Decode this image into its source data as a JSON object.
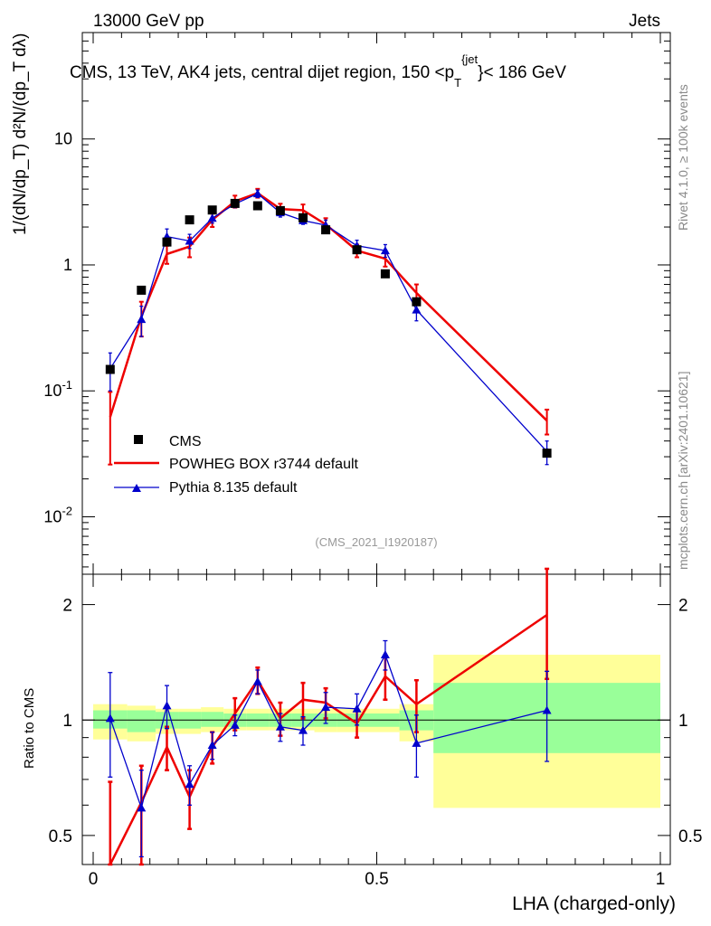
{
  "header": {
    "left": "13000 GeV pp",
    "right": "Jets",
    "plot_title": "CMS, 13 TeV, AK4 jets, central dijet region, 150 <p_T^{jet}< 186 GeV",
    "title_main": "CMS, 13 TeV, AK4 jets, central dijet region, 150 <p",
    "title_sub": "T",
    "title_sup": "{jet",
    "title_tail": "}< 186 GeV"
  },
  "side": {
    "rivet": "Rivet 4.1.0, ≥ 100k events",
    "mcplots": "mcplots.cern.ch [arXiv:2401.10621]"
  },
  "watermark": "(CMS_2021_I1920187)",
  "colors": {
    "data": "#000000",
    "powheg": "#ee0000",
    "pythia": "#0000cc",
    "band_inner": "#99ff99",
    "band_outer": "#ffff99"
  },
  "chart_data": [
    {
      "type": "line",
      "panel": "main",
      "yscale": "log",
      "xlim": [
        0,
        1
      ],
      "ylim": [
        0.0035,
        70
      ],
      "ylabel": "1/(dN/dp_T) d²N/(dp_T dλ)",
      "ytick_labels": [
        "10^-2",
        "10^-1",
        "1",
        "10"
      ],
      "ytick_values": [
        0.01,
        0.1,
        1,
        10
      ],
      "legend": [
        "CMS",
        "POWHEG BOX r3744 default",
        "Pythia 8.135 default"
      ],
      "legend_position": "bottom-left",
      "series": [
        {
          "name": "CMS",
          "style": "markers",
          "x": [
            0.03,
            0.085,
            0.13,
            0.17,
            0.21,
            0.25,
            0.29,
            0.33,
            0.37,
            0.41,
            0.465,
            0.515,
            0.57,
            0.8
          ],
          "values": [
            0.148,
            0.63,
            1.52,
            2.28,
            2.73,
            3.08,
            2.95,
            2.7,
            2.37,
            1.9,
            1.32,
            0.85,
            0.51,
            0.032
          ]
        },
        {
          "name": "POWHEG BOX r3744 default",
          "style": "line",
          "x": [
            0.03,
            0.085,
            0.13,
            0.17,
            0.21,
            0.25,
            0.29,
            0.33,
            0.37,
            0.41,
            0.465,
            0.515,
            0.57,
            0.8
          ],
          "values": [
            0.062,
            0.39,
            1.22,
            1.4,
            2.28,
            3.2,
            3.72,
            2.78,
            2.72,
            2.1,
            1.3,
            1.12,
            0.6,
            0.058
          ],
          "errors": [
            0.036,
            0.12,
            0.2,
            0.25,
            0.28,
            0.35,
            0.3,
            0.28,
            0.3,
            0.25,
            0.15,
            0.15,
            0.1,
            0.013
          ]
        },
        {
          "name": "Pythia 8.135 default",
          "style": "line+triangles",
          "x": [
            0.03,
            0.085,
            0.13,
            0.17,
            0.21,
            0.25,
            0.29,
            0.33,
            0.37,
            0.41,
            0.465,
            0.515,
            0.57,
            0.8
          ],
          "values": [
            0.15,
            0.37,
            1.68,
            1.55,
            2.35,
            3.05,
            3.68,
            2.6,
            2.25,
            2.07,
            1.42,
            1.3,
            0.44,
            0.033
          ],
          "errors": [
            0.05,
            0.1,
            0.25,
            0.2,
            0.2,
            0.2,
            0.25,
            0.2,
            0.15,
            0.2,
            0.15,
            0.15,
            0.08,
            0.007
          ]
        }
      ]
    },
    {
      "type": "line",
      "panel": "ratio",
      "yscale": "log",
      "xlim": [
        0,
        1
      ],
      "ylim": [
        0.42,
        2.4
      ],
      "xlabel": "LHA (charged-only)",
      "ylabel": "Ratio to CMS",
      "xtick_labels": [
        "0",
        "0.5",
        "1"
      ],
      "xtick_values": [
        0,
        0.5,
        1
      ],
      "ytick_labels": [
        "0.5",
        "1",
        "2"
      ],
      "ytick_values": [
        0.5,
        1,
        2
      ],
      "bands": {
        "edges": [
          0.0,
          0.06,
          0.11,
          0.15,
          0.19,
          0.23,
          0.27,
          0.31,
          0.35,
          0.39,
          0.43,
          0.5,
          0.54,
          0.6,
          1.0
        ],
        "inner_low": [
          0.95,
          0.93,
          0.95,
          0.95,
          0.96,
          0.96,
          0.96,
          0.96,
          0.96,
          0.96,
          0.96,
          0.96,
          0.94,
          0.82
        ],
        "inner_high": [
          1.06,
          1.06,
          1.05,
          1.05,
          1.05,
          1.04,
          1.04,
          1.04,
          1.04,
          1.04,
          1.04,
          1.04,
          1.06,
          1.25
        ],
        "outer_low": [
          0.89,
          0.88,
          0.92,
          0.92,
          0.93,
          0.94,
          0.94,
          0.94,
          0.94,
          0.93,
          0.93,
          0.93,
          0.88,
          0.59
        ],
        "outer_high": [
          1.1,
          1.09,
          1.07,
          1.07,
          1.08,
          1.07,
          1.07,
          1.07,
          1.07,
          1.07,
          1.07,
          1.07,
          1.1,
          1.48
        ]
      },
      "series": [
        {
          "name": "POWHEG BOX r3744 default",
          "x": [
            0.03,
            0.085,
            0.13,
            0.17,
            0.21,
            0.25,
            0.29,
            0.33,
            0.37,
            0.41,
            0.465,
            0.515,
            0.57,
            0.8
          ],
          "values": [
            0.42,
            0.61,
            0.85,
            0.63,
            0.85,
            1.04,
            1.27,
            1.01,
            1.13,
            1.11,
            0.98,
            1.3,
            1.1,
            1.88
          ],
          "err_low": [
            0.27,
            0.22,
            0.11,
            0.11,
            0.08,
            0.1,
            0.1,
            0.1,
            0.12,
            0.1,
            0.08,
            0.17,
            0.17,
            0.6
          ],
          "err_high": [
            0.27,
            0.15,
            0.11,
            0.11,
            0.08,
            0.1,
            0.1,
            0.1,
            0.12,
            0.1,
            0.08,
            0.17,
            0.17,
            0.6
          ]
        },
        {
          "name": "Pythia 8.135 default",
          "x": [
            0.03,
            0.085,
            0.13,
            0.17,
            0.21,
            0.25,
            0.29,
            0.33,
            0.37,
            0.41,
            0.465,
            0.515,
            0.57,
            0.8
          ],
          "values": [
            1.01,
            0.59,
            1.09,
            0.68,
            0.86,
            0.97,
            1.26,
            0.96,
            0.94,
            1.08,
            1.07,
            1.48,
            0.87,
            1.06
          ],
          "err_low": [
            0.3,
            0.15,
            0.14,
            0.08,
            0.07,
            0.06,
            0.09,
            0.08,
            0.08,
            0.1,
            0.1,
            0.13,
            0.16,
            0.28
          ],
          "err_high": [
            0.32,
            0.15,
            0.14,
            0.08,
            0.07,
            0.06,
            0.09,
            0.08,
            0.08,
            0.1,
            0.1,
            0.13,
            0.16,
            0.28
          ]
        }
      ]
    }
  ]
}
